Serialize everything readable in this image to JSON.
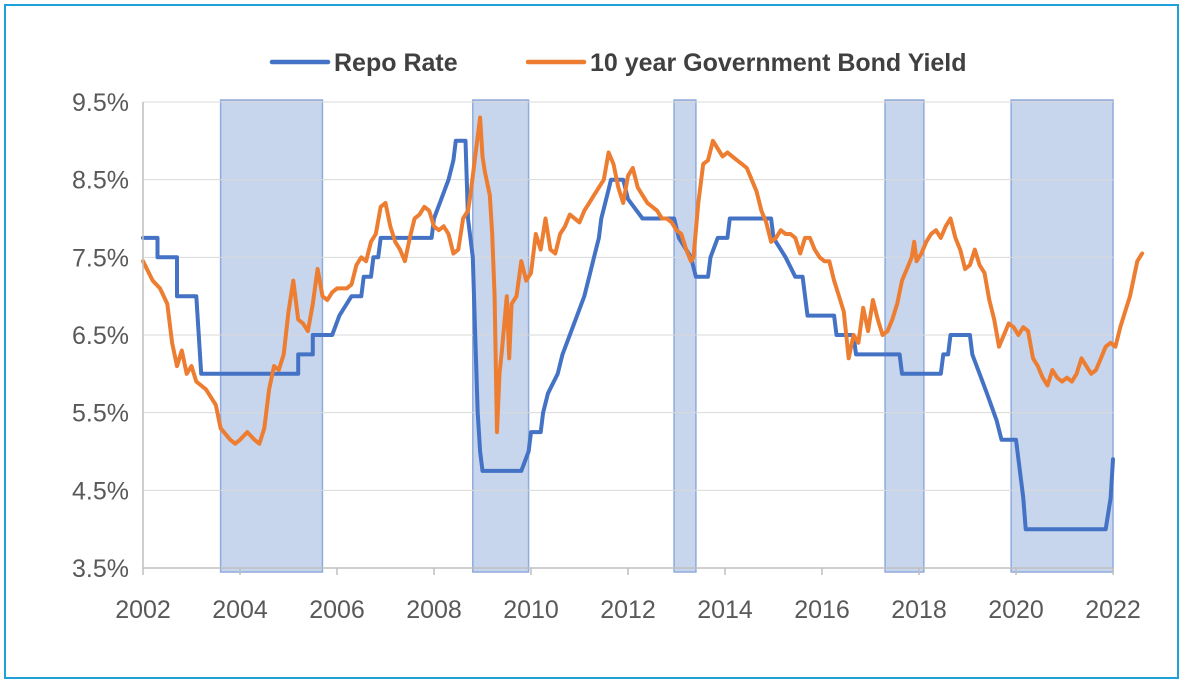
{
  "chart_data": {
    "type": "line",
    "title": "",
    "xlabel": "",
    "ylabel": "",
    "xlim": [
      2002,
      2022
    ],
    "ylim": [
      3.5,
      9.5
    ],
    "x_ticks": [
      2002,
      2004,
      2006,
      2008,
      2010,
      2012,
      2014,
      2016,
      2018,
      2020,
      2022
    ],
    "x_tick_labels": [
      "2002",
      "2004",
      "2006",
      "2008",
      "2010",
      "2012",
      "2014",
      "2016",
      "2018",
      "2020",
      "2022"
    ],
    "y_ticks": [
      3.5,
      4.5,
      5.5,
      6.5,
      7.5,
      8.5,
      9.5
    ],
    "y_tick_labels": [
      "3.5%",
      "4.5%",
      "5.5%",
      "6.5%",
      "7.5%",
      "8.5%",
      "9.5%"
    ],
    "grid": "horizontal",
    "legend": "top",
    "shaded_periods": [
      [
        2003.6,
        2005.7
      ],
      [
        2008.8,
        2009.95
      ],
      [
        2012.95,
        2013.4
      ],
      [
        2017.3,
        2018.1
      ],
      [
        2019.9,
        2022.0
      ]
    ],
    "shade_color": "#b4c7e7",
    "series": [
      {
        "name": "Repo Rate",
        "color": "#4472c4",
        "points": [
          [
            2002.0,
            7.75
          ],
          [
            2002.3,
            7.75
          ],
          [
            2002.3,
            7.5
          ],
          [
            2002.7,
            7.5
          ],
          [
            2002.7,
            7.0
          ],
          [
            2003.1,
            7.0
          ],
          [
            2003.2,
            6.0
          ],
          [
            2005.2,
            6.0
          ],
          [
            2005.2,
            6.25
          ],
          [
            2005.5,
            6.25
          ],
          [
            2005.5,
            6.5
          ],
          [
            2005.9,
            6.5
          ],
          [
            2006.05,
            6.75
          ],
          [
            2006.3,
            7.0
          ],
          [
            2006.5,
            7.0
          ],
          [
            2006.55,
            7.25
          ],
          [
            2006.7,
            7.25
          ],
          [
            2006.75,
            7.5
          ],
          [
            2006.85,
            7.5
          ],
          [
            2006.9,
            7.75
          ],
          [
            2007.95,
            7.75
          ],
          [
            2008.0,
            8.0
          ],
          [
            2008.15,
            8.25
          ],
          [
            2008.3,
            8.5
          ],
          [
            2008.4,
            8.75
          ],
          [
            2008.45,
            9.0
          ],
          [
            2008.65,
            9.0
          ],
          [
            2008.7,
            8.0
          ],
          [
            2008.8,
            7.5
          ],
          [
            2008.85,
            6.5
          ],
          [
            2008.9,
            5.5
          ],
          [
            2008.95,
            5.0
          ],
          [
            2009.0,
            4.75
          ],
          [
            2009.8,
            4.75
          ],
          [
            2009.95,
            5.0
          ],
          [
            2010.0,
            5.25
          ],
          [
            2010.2,
            5.25
          ],
          [
            2010.25,
            5.5
          ],
          [
            2010.35,
            5.75
          ],
          [
            2010.55,
            6.0
          ],
          [
            2010.65,
            6.25
          ],
          [
            2010.8,
            6.5
          ],
          [
            2010.95,
            6.75
          ],
          [
            2011.1,
            7.0
          ],
          [
            2011.2,
            7.25
          ],
          [
            2011.3,
            7.5
          ],
          [
            2011.4,
            7.75
          ],
          [
            2011.45,
            8.0
          ],
          [
            2011.55,
            8.25
          ],
          [
            2011.65,
            8.5
          ],
          [
            2011.9,
            8.5
          ],
          [
            2012.0,
            8.25
          ],
          [
            2012.3,
            8.0
          ],
          [
            2012.95,
            8.0
          ],
          [
            2013.05,
            7.75
          ],
          [
            2013.3,
            7.5
          ],
          [
            2013.4,
            7.25
          ],
          [
            2013.65,
            7.25
          ],
          [
            2013.7,
            7.5
          ],
          [
            2013.85,
            7.75
          ],
          [
            2014.05,
            7.75
          ],
          [
            2014.1,
            8.0
          ],
          [
            2014.95,
            8.0
          ],
          [
            2015.0,
            7.75
          ],
          [
            2015.25,
            7.5
          ],
          [
            2015.45,
            7.25
          ],
          [
            2015.6,
            7.25
          ],
          [
            2015.7,
            6.75
          ],
          [
            2016.25,
            6.75
          ],
          [
            2016.3,
            6.5
          ],
          [
            2016.65,
            6.5
          ],
          [
            2016.7,
            6.25
          ],
          [
            2017.6,
            6.25
          ],
          [
            2017.65,
            6.0
          ],
          [
            2018.45,
            6.0
          ],
          [
            2018.5,
            6.25
          ],
          [
            2018.6,
            6.25
          ],
          [
            2018.65,
            6.5
          ],
          [
            2019.05,
            6.5
          ],
          [
            2019.1,
            6.25
          ],
          [
            2019.25,
            6.0
          ],
          [
            2019.4,
            5.75
          ],
          [
            2019.6,
            5.4
          ],
          [
            2019.7,
            5.15
          ],
          [
            2020.0,
            5.15
          ],
          [
            2020.15,
            4.4
          ],
          [
            2020.2,
            4.0
          ],
          [
            2021.85,
            4.0
          ],
          [
            2021.95,
            4.4
          ],
          [
            2022.0,
            4.9
          ]
        ]
      },
      {
        "name": "10 year Government Bond Yield",
        "color": "#ed7d31",
        "points": [
          [
            2002.0,
            7.45
          ],
          [
            2002.2,
            7.2
          ],
          [
            2002.35,
            7.1
          ],
          [
            2002.5,
            6.9
          ],
          [
            2002.6,
            6.4
          ],
          [
            2002.7,
            6.1
          ],
          [
            2002.8,
            6.3
          ],
          [
            2002.9,
            6.0
          ],
          [
            2003.0,
            6.1
          ],
          [
            2003.1,
            5.9
          ],
          [
            2003.3,
            5.8
          ],
          [
            2003.5,
            5.6
          ],
          [
            2003.6,
            5.3
          ],
          [
            2003.8,
            5.15
          ],
          [
            2003.9,
            5.1
          ],
          [
            2004.0,
            5.15
          ],
          [
            2004.15,
            5.25
          ],
          [
            2004.3,
            5.15
          ],
          [
            2004.4,
            5.1
          ],
          [
            2004.5,
            5.3
          ],
          [
            2004.6,
            5.8
          ],
          [
            2004.7,
            6.1
          ],
          [
            2004.8,
            6.05
          ],
          [
            2004.9,
            6.25
          ],
          [
            2005.0,
            6.8
          ],
          [
            2005.1,
            7.2
          ],
          [
            2005.2,
            6.7
          ],
          [
            2005.3,
            6.65
          ],
          [
            2005.4,
            6.55
          ],
          [
            2005.5,
            6.9
          ],
          [
            2005.6,
            7.35
          ],
          [
            2005.7,
            7.0
          ],
          [
            2005.8,
            6.95
          ],
          [
            2005.9,
            7.05
          ],
          [
            2006.0,
            7.1
          ],
          [
            2006.1,
            7.1
          ],
          [
            2006.2,
            7.1
          ],
          [
            2006.3,
            7.15
          ],
          [
            2006.4,
            7.4
          ],
          [
            2006.5,
            7.5
          ],
          [
            2006.6,
            7.45
          ],
          [
            2006.7,
            7.7
          ],
          [
            2006.8,
            7.8
          ],
          [
            2006.9,
            8.15
          ],
          [
            2007.0,
            8.2
          ],
          [
            2007.1,
            7.9
          ],
          [
            2007.2,
            7.7
          ],
          [
            2007.3,
            7.6
          ],
          [
            2007.4,
            7.45
          ],
          [
            2007.5,
            7.75
          ],
          [
            2007.6,
            8.0
          ],
          [
            2007.7,
            8.05
          ],
          [
            2007.8,
            8.15
          ],
          [
            2007.9,
            8.1
          ],
          [
            2008.0,
            7.9
          ],
          [
            2008.1,
            7.85
          ],
          [
            2008.2,
            7.9
          ],
          [
            2008.3,
            7.8
          ],
          [
            2008.4,
            7.55
          ],
          [
            2008.5,
            7.6
          ],
          [
            2008.6,
            8.0
          ],
          [
            2008.7,
            8.1
          ],
          [
            2008.75,
            8.3
          ],
          [
            2008.85,
            8.8
          ],
          [
            2008.95,
            9.3
          ],
          [
            2009.0,
            8.8
          ],
          [
            2009.05,
            8.6
          ],
          [
            2009.15,
            8.3
          ],
          [
            2009.2,
            7.8
          ],
          [
            2009.25,
            7.0
          ],
          [
            2009.3,
            5.25
          ],
          [
            2009.35,
            6.0
          ],
          [
            2009.4,
            6.3
          ],
          [
            2009.5,
            7.0
          ],
          [
            2009.55,
            6.2
          ],
          [
            2009.6,
            6.9
          ],
          [
            2009.7,
            7.0
          ],
          [
            2009.8,
            7.45
          ],
          [
            2009.9,
            7.2
          ],
          [
            2010.0,
            7.3
          ],
          [
            2010.1,
            7.8
          ],
          [
            2010.2,
            7.6
          ],
          [
            2010.3,
            8.0
          ],
          [
            2010.4,
            7.6
          ],
          [
            2010.5,
            7.55
          ],
          [
            2010.6,
            7.8
          ],
          [
            2010.7,
            7.9
          ],
          [
            2010.8,
            8.05
          ],
          [
            2010.9,
            8.0
          ],
          [
            2011.0,
            7.95
          ],
          [
            2011.1,
            8.1
          ],
          [
            2011.2,
            8.2
          ],
          [
            2011.3,
            8.3
          ],
          [
            2011.4,
            8.4
          ],
          [
            2011.5,
            8.5
          ],
          [
            2011.6,
            8.85
          ],
          [
            2011.7,
            8.7
          ],
          [
            2011.8,
            8.4
          ],
          [
            2011.9,
            8.2
          ],
          [
            2012.0,
            8.55
          ],
          [
            2012.1,
            8.65
          ],
          [
            2012.2,
            8.4
          ],
          [
            2012.3,
            8.3
          ],
          [
            2012.4,
            8.2
          ],
          [
            2012.5,
            8.15
          ],
          [
            2012.6,
            8.1
          ],
          [
            2012.7,
            8.0
          ],
          [
            2012.8,
            8.0
          ],
          [
            2012.9,
            7.95
          ],
          [
            2013.0,
            7.85
          ],
          [
            2013.1,
            7.8
          ],
          [
            2013.2,
            7.6
          ],
          [
            2013.3,
            7.45
          ],
          [
            2013.35,
            7.5
          ],
          [
            2013.45,
            8.2
          ],
          [
            2013.55,
            8.7
          ],
          [
            2013.65,
            8.75
          ],
          [
            2013.75,
            9.0
          ],
          [
            2013.85,
            8.9
          ],
          [
            2013.95,
            8.8
          ],
          [
            2014.05,
            8.85
          ],
          [
            2014.15,
            8.8
          ],
          [
            2014.25,
            8.75
          ],
          [
            2014.35,
            8.7
          ],
          [
            2014.45,
            8.65
          ],
          [
            2014.55,
            8.5
          ],
          [
            2014.65,
            8.35
          ],
          [
            2014.75,
            8.1
          ],
          [
            2014.85,
            7.95
          ],
          [
            2014.95,
            7.7
          ],
          [
            2015.05,
            7.75
          ],
          [
            2015.15,
            7.85
          ],
          [
            2015.25,
            7.8
          ],
          [
            2015.35,
            7.8
          ],
          [
            2015.45,
            7.75
          ],
          [
            2015.55,
            7.55
          ],
          [
            2015.65,
            7.75
          ],
          [
            2015.75,
            7.75
          ],
          [
            2015.85,
            7.6
          ],
          [
            2015.95,
            7.5
          ],
          [
            2016.05,
            7.45
          ],
          [
            2016.15,
            7.45
          ],
          [
            2016.25,
            7.2
          ],
          [
            2016.35,
            7.0
          ],
          [
            2016.45,
            6.8
          ],
          [
            2016.55,
            6.2
          ],
          [
            2016.65,
            6.5
          ],
          [
            2016.75,
            6.4
          ],
          [
            2016.85,
            6.85
          ],
          [
            2016.95,
            6.55
          ],
          [
            2017.05,
            6.95
          ],
          [
            2017.15,
            6.7
          ],
          [
            2017.25,
            6.5
          ],
          [
            2017.35,
            6.55
          ],
          [
            2017.45,
            6.7
          ],
          [
            2017.55,
            6.9
          ],
          [
            2017.65,
            7.2
          ],
          [
            2017.75,
            7.35
          ],
          [
            2017.85,
            7.5
          ],
          [
            2017.9,
            7.7
          ],
          [
            2017.95,
            7.45
          ],
          [
            2018.05,
            7.55
          ],
          [
            2018.15,
            7.7
          ],
          [
            2018.25,
            7.8
          ],
          [
            2018.35,
            7.85
          ],
          [
            2018.45,
            7.75
          ],
          [
            2018.55,
            7.9
          ],
          [
            2018.65,
            8.0
          ],
          [
            2018.75,
            7.75
          ],
          [
            2018.85,
            7.6
          ],
          [
            2018.95,
            7.35
          ],
          [
            2019.05,
            7.4
          ],
          [
            2019.15,
            7.6
          ],
          [
            2019.25,
            7.4
          ],
          [
            2019.35,
            7.3
          ],
          [
            2019.45,
            6.95
          ],
          [
            2019.55,
            6.7
          ],
          [
            2019.65,
            6.35
          ],
          [
            2019.75,
            6.5
          ],
          [
            2019.85,
            6.65
          ],
          [
            2019.95,
            6.6
          ],
          [
            2020.05,
            6.5
          ],
          [
            2020.15,
            6.6
          ],
          [
            2020.25,
            6.55
          ],
          [
            2020.35,
            6.2
          ],
          [
            2020.45,
            6.1
          ],
          [
            2020.55,
            5.95
          ],
          [
            2020.65,
            5.85
          ],
          [
            2020.75,
            6.05
          ],
          [
            2020.85,
            5.95
          ],
          [
            2020.95,
            5.9
          ],
          [
            2021.05,
            5.95
          ],
          [
            2021.15,
            5.9
          ],
          [
            2021.25,
            6.0
          ],
          [
            2021.35,
            6.2
          ],
          [
            2021.45,
            6.1
          ],
          [
            2021.55,
            6.0
          ],
          [
            2021.65,
            6.05
          ],
          [
            2021.75,
            6.2
          ],
          [
            2021.85,
            6.35
          ],
          [
            2021.95,
            6.4
          ],
          [
            2022.05,
            6.35
          ],
          [
            2022.15,
            6.6
          ],
          [
            2022.25,
            6.8
          ],
          [
            2022.35,
            7.0
          ],
          [
            2022.5,
            7.45
          ],
          [
            2022.6,
            7.55
          ]
        ]
      }
    ]
  }
}
